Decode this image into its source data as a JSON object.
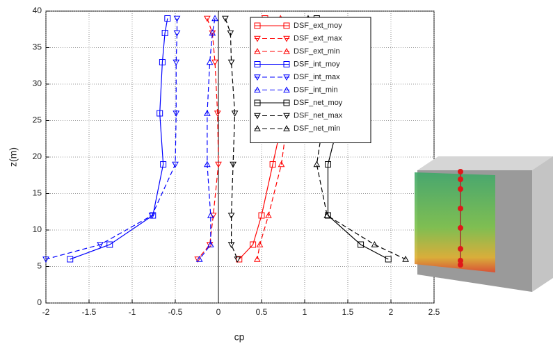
{
  "chart_data": {
    "type": "line",
    "x_label": "cp",
    "y_label": "z(m)",
    "xlim": [
      -2,
      2.5
    ],
    "xticks": [
      -2,
      -1.5,
      -1,
      -0.5,
      0,
      0.5,
      1,
      1.5,
      2,
      2.5
    ],
    "ylim": [
      0,
      40
    ],
    "yticks": [
      0,
      5,
      10,
      15,
      20,
      25,
      30,
      35,
      40
    ],
    "grid": true,
    "legend": "upper right",
    "series": [
      {
        "name": "DSF_ext_moy",
        "color": "#ff0000",
        "style": "solid",
        "marker": "square",
        "x": [
          0.54,
          0.74,
          0.81,
          0.76,
          0.63,
          0.5,
          0.4,
          0.24
        ],
        "values": [
          39,
          37,
          33,
          26,
          19,
          12,
          8,
          6
        ]
      },
      {
        "name": "DSF_ext_max",
        "color": "#ff0000",
        "style": "dashed",
        "marker": "triangle-down",
        "x": [
          -0.13,
          -0.07,
          -0.04,
          -0.01,
          0,
          -0.06,
          -0.1,
          -0.24
        ],
        "values": [
          39,
          37,
          33,
          26,
          19,
          12,
          8,
          6
        ]
      },
      {
        "name": "DSF_ext_min",
        "color": "#ff0000",
        "style": "dashed",
        "marker": "triangle-up",
        "x": [
          0.72,
          0.83,
          0.88,
          0.81,
          0.73,
          0.58,
          0.48,
          0.45
        ],
        "values": [
          39,
          37,
          33,
          26,
          19,
          12,
          8,
          6
        ]
      },
      {
        "name": "DSF_int_moy",
        "color": "#0000ff",
        "style": "solid",
        "marker": "square",
        "x": [
          -0.59,
          -0.62,
          -0.65,
          -0.68,
          -0.64,
          -0.76,
          -1.26,
          -1.72
        ],
        "values": [
          39,
          37,
          33,
          26,
          19,
          12,
          8,
          6
        ]
      },
      {
        "name": "DSF_int_max",
        "color": "#0000ff",
        "style": "dashed",
        "marker": "triangle-down",
        "x": [
          -0.48,
          -0.48,
          -0.49,
          -0.49,
          -0.5,
          -0.77,
          -1.37,
          -2
        ],
        "values": [
          39,
          37,
          33,
          26,
          19,
          12,
          8,
          6
        ]
      },
      {
        "name": "DSF_int_min",
        "color": "#0000ff",
        "style": "dashed",
        "marker": "triangle-up",
        "x": [
          -0.04,
          -0.07,
          -0.1,
          -0.13,
          -0.13,
          -0.09,
          -0.09,
          -0.22
        ],
        "values": [
          39,
          37,
          33,
          26,
          19,
          12,
          8,
          6
        ]
      },
      {
        "name": "DSF_net_moy",
        "color": "#000000",
        "style": "solid",
        "marker": "square",
        "x": [
          1.14,
          1.38,
          1.48,
          1.42,
          1.27,
          1.27,
          1.65,
          1.97
        ],
        "values": [
          39,
          37,
          33,
          26,
          19,
          12,
          8,
          6
        ]
      },
      {
        "name": "DSF_net_max",
        "color": "#000000",
        "style": "dashed",
        "marker": "triangle-down",
        "x": [
          0.08,
          0.14,
          0.15,
          0.19,
          0.17,
          0.15,
          0.15,
          0.22
        ],
        "values": [
          39,
          37,
          33,
          26,
          19,
          12,
          8,
          6
        ]
      },
      {
        "name": "DSF_net_min",
        "color": "#000000",
        "style": "dashed",
        "marker": "triangle-up",
        "x": [
          1.04,
          1.19,
          1.27,
          1.23,
          1.14,
          1.26,
          1.81,
          2.17
        ],
        "values": [
          39,
          37,
          33,
          26,
          19,
          12,
          8,
          6
        ]
      }
    ]
  }
}
